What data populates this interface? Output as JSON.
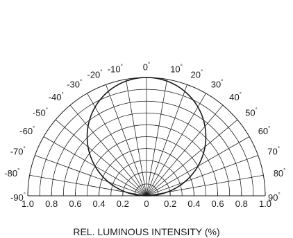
{
  "chart_data": {
    "type": "polar-half",
    "xlabel": "REL. LUMINOUS INTENSITY (%)",
    "radial_ticks": [
      "1.0",
      "0.8",
      "0.6",
      "0.4",
      "0.2",
      "0",
      "0.2",
      "0.4",
      "0.6",
      "0.8",
      "1.0"
    ],
    "angle_ticks": [
      {
        "value": -90,
        "label": "-90"
      },
      {
        "value": -80,
        "label": "-80"
      },
      {
        "value": -70,
        "label": "-70"
      },
      {
        "value": -60,
        "label": "-60"
      },
      {
        "value": -50,
        "label": "-50"
      },
      {
        "value": -40,
        "label": "-40"
      },
      {
        "value": -30,
        "label": "-30"
      },
      {
        "value": -20,
        "label": "-20"
      },
      {
        "value": -10,
        "label": "-10"
      },
      {
        "value": 0,
        "label": "0"
      },
      {
        "value": 10,
        "label": "10"
      },
      {
        "value": 20,
        "label": "20"
      },
      {
        "value": 30,
        "label": "30"
      },
      {
        "value": 40,
        "label": "40"
      },
      {
        "value": 50,
        "label": "50"
      },
      {
        "value": 60,
        "label": "60"
      },
      {
        "value": 70,
        "label": "70"
      },
      {
        "value": 80,
        "label": "80"
      },
      {
        "value": 90,
        "label": "90"
      }
    ],
    "degree_symbol": "°",
    "radial_range": [
      0,
      1
    ],
    "angle_range": [
      -90,
      90
    ],
    "grid": true,
    "series": [
      {
        "angles": [
          -90,
          -80,
          -70,
          -60,
          -50,
          -40,
          -30,
          -20,
          -10,
          0,
          10,
          20,
          30,
          40,
          50,
          60,
          70,
          80,
          90
        ],
        "values": [
          0,
          0.17,
          0.34,
          0.5,
          0.64,
          0.77,
          0.87,
          0.94,
          0.98,
          1.0,
          0.98,
          0.94,
          0.87,
          0.77,
          0.64,
          0.5,
          0.34,
          0.17,
          0
        ]
      }
    ]
  }
}
